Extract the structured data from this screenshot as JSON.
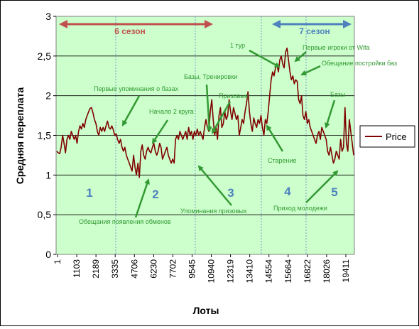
{
  "chart_data": {
    "type": "line",
    "title": "",
    "xlabel": "Лоты",
    "ylabel": "Средняя переплата",
    "ylim": [
      0,
      3
    ],
    "yticks": [
      "0",
      "0,5",
      "1",
      "1,5",
      "2",
      "2,5",
      "3"
    ],
    "ytick_values": [
      0,
      0.5,
      1,
      1.5,
      2,
      2.5,
      3
    ],
    "xticks": [
      "1",
      "1103",
      "2189",
      "3335",
      "4706",
      "6230",
      "7702",
      "9545",
      "10940",
      "12319",
      "13410",
      "14554",
      "15664",
      "16822",
      "18026",
      "19411"
    ],
    "grid": "horizontal",
    "legend": {
      "position": "right",
      "entries": [
        "Price"
      ]
    },
    "plot_background": "#ccffcc",
    "series": [
      {
        "name": "Price",
        "color": "#800000",
        "values": [
          1.3,
          1.28,
          1.27,
          1.35,
          1.5,
          1.4,
          1.28,
          1.45,
          1.5,
          1.45,
          1.55,
          1.5,
          1.45,
          1.5,
          1.4,
          1.55,
          1.62,
          1.58,
          1.65,
          1.6,
          1.7,
          1.75,
          1.8,
          1.84,
          1.85,
          1.78,
          1.7,
          1.65,
          1.55,
          1.5,
          1.6,
          1.55,
          1.6,
          1.55,
          1.62,
          1.68,
          1.6,
          1.58,
          1.62,
          1.57,
          1.5,
          1.52,
          1.45,
          1.4,
          1.45,
          1.35,
          1.3,
          1.35,
          1.25,
          1.2,
          1.15,
          1.1,
          1.05,
          1.25,
          1.1,
          1.0,
          1.15,
          0.97,
          1.3,
          1.38,
          1.25,
          1.2,
          1.3,
          1.35,
          1.3,
          1.28,
          1.35,
          1.4,
          1.3,
          1.25,
          1.3,
          1.4,
          1.35,
          1.2,
          1.25,
          1.3,
          1.35,
          1.25,
          1.2,
          1.15,
          1.2,
          1.15,
          1.45,
          1.5,
          1.45,
          1.55,
          1.5,
          1.45,
          1.5,
          1.55,
          1.45,
          1.6,
          1.5,
          1.55,
          1.45,
          1.55,
          1.5,
          1.58,
          1.5,
          1.55,
          1.5,
          1.45,
          1.6,
          1.7,
          1.6,
          1.55,
          1.8,
          1.95,
          1.7,
          1.5,
          1.6,
          1.45,
          1.75,
          1.85,
          1.6,
          1.65,
          1.8,
          1.7,
          1.75,
          1.95,
          1.8,
          1.7,
          1.85,
          1.78,
          1.7,
          1.75,
          1.5,
          1.6,
          1.7,
          1.65,
          1.8,
          1.9,
          2.05,
          1.8,
          1.65,
          1.55,
          1.72,
          1.65,
          1.6,
          1.7,
          1.65,
          1.75,
          1.6,
          1.5,
          1.7,
          1.65,
          1.8,
          2.0,
          2.2,
          2.3,
          2.25,
          2.35,
          2.4,
          2.3,
          2.45,
          2.5,
          2.4,
          2.35,
          2.55,
          2.6,
          2.45,
          2.3,
          2.2,
          2.25,
          2.15,
          2.2,
          2.18,
          1.95,
          1.9,
          2.0,
          1.75,
          1.7,
          1.8,
          1.65,
          1.7,
          1.6,
          1.55,
          1.5,
          1.45,
          1.4,
          1.5,
          1.55,
          1.45,
          1.6,
          1.55,
          1.5,
          1.45,
          1.3,
          1.25,
          1.35,
          1.25,
          1.15,
          1.2,
          1.3,
          1.25,
          1.2,
          1.45,
          1.3,
          1.35,
          1.85,
          1.4,
          1.3,
          1.7,
          1.55,
          1.4,
          1.25
        ]
      }
    ],
    "seasons": [
      {
        "label": "6 сезон",
        "color": "#c0504d"
      },
      {
        "label": "7 сезон",
        "color": "#4f81bd"
      }
    ],
    "periods": [
      "1",
      "2",
      "3",
      "4",
      "5"
    ],
    "annotations": [
      "Первые упоминания о базах",
      "Начало 2 круга",
      "Обещания появления обменов",
      "Базы, Тренировки",
      "Призовые",
      "Упоминания призовых",
      "1 тур",
      "Первые игроки от Wifa",
      "Обещание постройки баз",
      "Базы",
      "Старение",
      "Приход молодежи"
    ]
  }
}
